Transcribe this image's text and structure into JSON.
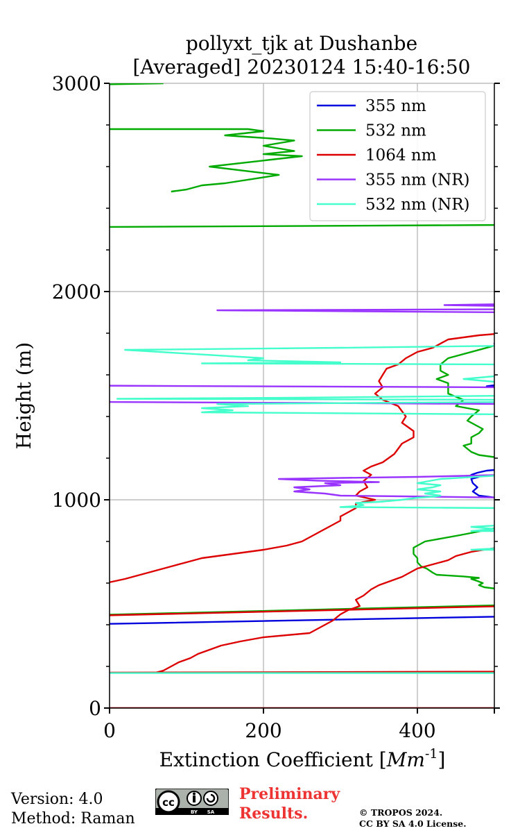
{
  "chart_data": {
    "type": "line",
    "title": [
      "pollyxt_tjk at Dushanbe",
      "[Averaged] 20230124 15:40-16:50"
    ],
    "xlabel": "Extinction Coefficient [Mm^-1]",
    "xlabel_parts": {
      "main": "Extinction Coefficient [",
      "unit_base": "Mm",
      "unit_exp": "-1",
      "end": "]"
    },
    "ylabel": "Height (m)",
    "xlim": [
      0,
      500
    ],
    "ylim": [
      0,
      3000
    ],
    "xticks": [
      0,
      200,
      400
    ],
    "yticks": [
      0,
      1000,
      2000,
      3000
    ],
    "grid": true,
    "legend_position": "top-right",
    "series": [
      {
        "name": "355 nm",
        "color": "#0000dd",
        "points": [
          [
            -5,
            404
          ],
          [
            520,
            440
          ],
          [
            null,
            null
          ],
          [
            520,
            1002
          ],
          [
            480,
            1020
          ],
          [
            472,
            1040
          ],
          [
            478,
            1060
          ],
          [
            472,
            1080
          ],
          [
            470,
            1100
          ],
          [
            480,
            1110
          ],
          [
            470,
            1120
          ],
          [
            478,
            1130
          ],
          [
            490,
            1140
          ],
          [
            520,
            1150
          ],
          [
            null,
            null
          ],
          [
            520,
            1540
          ],
          [
            490,
            1545
          ],
          [
            520,
            1560
          ],
          [
            null,
            null
          ],
          [
            520,
            1740
          ],
          [
            500,
            1750
          ],
          [
            520,
            1760
          ]
        ]
      },
      {
        "name": "532 nm",
        "color": "#00aa00",
        "points": [
          [
            -5,
            448
          ],
          [
            520,
            495
          ],
          [
            null,
            null
          ],
          [
            520,
            880
          ],
          [
            490,
            855
          ],
          [
            455,
            830
          ],
          [
            410,
            800
          ],
          [
            395,
            770
          ],
          [
            395,
            740
          ],
          [
            400,
            720
          ],
          [
            400,
            700
          ],
          [
            405,
            680
          ],
          [
            412,
            670
          ],
          [
            420,
            650
          ],
          [
            425,
            640
          ],
          [
            460,
            632
          ],
          [
            480,
            625
          ],
          [
            470,
            620
          ],
          [
            478,
            610
          ],
          [
            485,
            600
          ],
          [
            480,
            590
          ],
          [
            487,
            580
          ],
          [
            520,
            565
          ],
          [
            null,
            null
          ],
          [
            520,
            1200
          ],
          [
            500,
            1205
          ],
          [
            480,
            1215
          ],
          [
            470,
            1230
          ],
          [
            460,
            1260
          ],
          [
            470,
            1270
          ],
          [
            470,
            1300
          ],
          [
            480,
            1320
          ],
          [
            485,
            1340
          ],
          [
            465,
            1380
          ],
          [
            470,
            1400
          ],
          [
            480,
            1430
          ],
          [
            450,
            1450
          ],
          [
            460,
            1480
          ],
          [
            440,
            1510
          ],
          [
            440,
            1540
          ],
          [
            440,
            1560
          ],
          [
            425,
            1580
          ],
          [
            440,
            1600
          ],
          [
            430,
            1620
          ],
          [
            430,
            1650
          ],
          [
            440,
            1680
          ],
          [
            520,
            1760
          ],
          [
            null,
            null
          ],
          [
            -5,
            2310
          ],
          [
            520,
            2320
          ],
          [
            null,
            null
          ],
          [
            80,
            2480
          ],
          [
            100,
            2490
          ],
          [
            120,
            2510
          ],
          [
            150,
            2520
          ],
          [
            220,
            2560
          ],
          [
            130,
            2600
          ],
          [
            250,
            2650
          ],
          [
            200,
            2660
          ],
          [
            240,
            2675
          ],
          [
            200,
            2700
          ],
          [
            240,
            2725
          ],
          [
            210,
            2735
          ],
          [
            150,
            2750
          ],
          [
            200,
            2770
          ],
          [
            180,
            2780
          ],
          [
            -5,
            2780
          ],
          [
            null,
            null
          ],
          [
            -5,
            2995
          ],
          [
            70,
            3000
          ]
        ]
      },
      {
        "name": "1064 nm",
        "color": "#dd0000",
        "points": [
          [
            -5,
            445
          ],
          [
            520,
            490
          ],
          [
            null,
            null
          ],
          [
            520,
            780
          ],
          [
            495,
            765
          ],
          [
            470,
            750
          ],
          [
            450,
            730
          ],
          [
            440,
            710
          ],
          [
            420,
            690
          ],
          [
            400,
            670
          ],
          [
            390,
            650
          ],
          [
            380,
            630
          ],
          [
            350,
            590
          ],
          [
            340,
            570
          ],
          [
            330,
            540
          ],
          [
            320,
            520
          ],
          [
            325,
            490
          ],
          [
            310,
            470
          ],
          [
            300,
            450
          ],
          [
            290,
            420
          ],
          [
            280,
            400
          ],
          [
            270,
            380
          ],
          [
            260,
            360
          ],
          [
            200,
            340
          ],
          [
            170,
            320
          ],
          [
            145,
            300
          ],
          [
            130,
            280
          ],
          [
            115,
            260
          ],
          [
            105,
            240
          ],
          [
            90,
            220
          ],
          [
            80,
            200
          ],
          [
            70,
            180
          ],
          [
            60,
            170
          ],
          [
            -5,
            170
          ],
          [
            null,
            null
          ],
          [
            -5,
            170
          ],
          [
            520,
            175
          ],
          [
            null,
            null
          ],
          [
            -5,
            0
          ],
          [
            520,
            0
          ],
          [
            null,
            null
          ],
          [
            520,
            1802
          ],
          [
            480,
            1790
          ],
          [
            440,
            1770
          ],
          [
            420,
            1730
          ],
          [
            400,
            1710
          ],
          [
            385,
            1680
          ],
          [
            375,
            1650
          ],
          [
            360,
            1630
          ],
          [
            355,
            1600
          ],
          [
            350,
            1570
          ],
          [
            355,
            1540
          ],
          [
            345,
            1510
          ],
          [
            355,
            1480
          ],
          [
            375,
            1450
          ],
          [
            385,
            1400
          ],
          [
            380,
            1370
          ],
          [
            395,
            1330
          ],
          [
            395,
            1300
          ],
          [
            380,
            1270
          ],
          [
            370,
            1220
          ],
          [
            355,
            1180
          ],
          [
            340,
            1160
          ],
          [
            330,
            1140
          ],
          [
            340,
            1120
          ],
          [
            330,
            1090
          ],
          [
            335,
            1060
          ],
          [
            325,
            1040
          ],
          [
            320,
            1020
          ],
          [
            345,
            1000
          ],
          [
            330,
            990
          ],
          [
            320,
            980
          ],
          [
            320,
            960
          ],
          [
            310,
            940
          ],
          [
            300,
            920
          ],
          [
            300,
            900
          ],
          [
            290,
            880
          ],
          [
            280,
            860
          ],
          [
            270,
            840
          ],
          [
            260,
            820
          ],
          [
            250,
            800
          ],
          [
            230,
            780
          ],
          [
            200,
            760
          ],
          [
            160,
            740
          ],
          [
            120,
            720
          ],
          [
            100,
            700
          ],
          [
            80,
            680
          ],
          [
            60,
            660
          ],
          [
            40,
            640
          ],
          [
            20,
            620
          ],
          [
            -5,
            600
          ]
        ]
      },
      {
        "name": "355 nm (NR)",
        "color": "#9933ff",
        "points": [
          [
            520,
            1120
          ],
          [
            400,
            1110
          ],
          [
            300,
            1105
          ],
          [
            220,
            1100
          ],
          [
            270,
            1092
          ],
          [
            350,
            1085
          ],
          [
            280,
            1080
          ],
          [
            300,
            1070
          ],
          [
            240,
            1060
          ],
          [
            260,
            1050
          ],
          [
            240,
            1040
          ],
          [
            280,
            1030
          ],
          [
            300,
            1020
          ],
          [
            420,
            1015
          ],
          [
            520,
            1010
          ],
          [
            null,
            null
          ],
          [
            520,
            1540
          ],
          [
            -5,
            1548
          ],
          [
            null,
            null
          ],
          [
            520,
            1460
          ],
          [
            -5,
            1470
          ],
          [
            null,
            null
          ],
          [
            520,
            1900
          ],
          [
            140,
            1910
          ],
          [
            520,
            1915
          ],
          [
            null,
            null
          ],
          [
            520,
            1930
          ],
          [
            435,
            1935
          ],
          [
            520,
            1940
          ]
        ]
      },
      {
        "name": "532 nm (NR)",
        "color": "#44ffcc",
        "points": [
          [
            -5,
            168
          ],
          [
            520,
            168
          ],
          [
            null,
            null
          ],
          [
            520,
            760
          ],
          [
            470,
            760
          ],
          [
            520,
            770
          ],
          [
            null,
            null
          ],
          [
            520,
            850
          ],
          [
            470,
            850
          ],
          [
            500,
            860
          ],
          [
            470,
            870
          ],
          [
            520,
            880
          ],
          [
            null,
            null
          ],
          [
            520,
            960
          ],
          [
            300,
            965
          ],
          [
            320,
            970
          ],
          [
            330,
            975
          ],
          [
            320,
            985
          ],
          [
            350,
            990
          ],
          [
            380,
            1000
          ],
          [
            400,
            1010
          ],
          [
            420,
            1015
          ],
          [
            430,
            1020
          ],
          [
            410,
            1030
          ],
          [
            430,
            1040
          ],
          [
            400,
            1050
          ],
          [
            420,
            1060
          ],
          [
            430,
            1070
          ],
          [
            400,
            1080
          ],
          [
            430,
            1100
          ],
          [
            520,
            1120
          ],
          [
            null,
            null
          ],
          [
            520,
            1410
          ],
          [
            120,
            1420
          ],
          [
            160,
            1430
          ],
          [
            120,
            1440
          ],
          [
            180,
            1450
          ],
          [
            140,
            1460
          ],
          [
            520,
            1470
          ],
          [
            null,
            null
          ],
          [
            520,
            1480
          ],
          [
            10,
            1485
          ],
          [
            240,
            1490
          ],
          [
            520,
            1500
          ],
          [
            null,
            null
          ],
          [
            520,
            1650
          ],
          [
            120,
            1655
          ],
          [
            300,
            1660
          ],
          [
            180,
            1670
          ],
          [
            200,
            1680
          ],
          [
            20,
            1720
          ],
          [
            300,
            1730
          ],
          [
            520,
            1740
          ],
          [
            null,
            null
          ],
          [
            520,
            1560
          ],
          [
            460,
            1580
          ],
          [
            520,
            1600
          ]
        ]
      }
    ]
  },
  "footer": {
    "version": "Version: 4.0",
    "method": "Method: Raman",
    "license_badge": "cc by-sa",
    "preliminary_line1": "Preliminary",
    "preliminary_line2": "Results.",
    "copyright_line1": "© TROPOS 2024.",
    "copyright_line2": "CC BY SA 4.0 License."
  }
}
